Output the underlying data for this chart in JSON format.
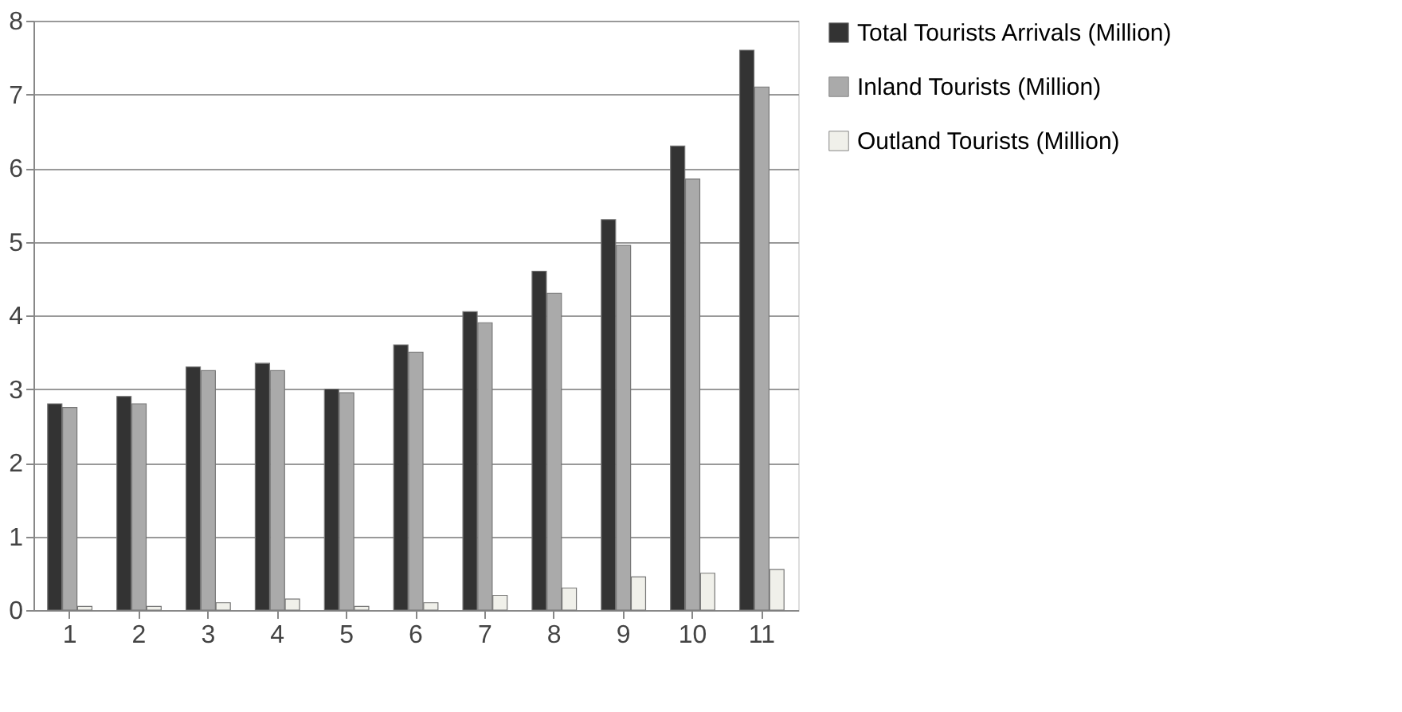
{
  "chart_data": {
    "type": "bar",
    "categories": [
      "1",
      "2",
      "3",
      "4",
      "5",
      "6",
      "7",
      "8",
      "9",
      "10",
      "11"
    ],
    "series": [
      {
        "name": "Total Tourists Arrivals (Million)",
        "color": "#333333",
        "values": [
          2.8,
          2.9,
          3.3,
          3.35,
          3.0,
          3.6,
          4.05,
          4.6,
          5.3,
          6.3,
          7.6
        ]
      },
      {
        "name": "Inland Tourists (Million)",
        "color": "#aaaaaa",
        "values": [
          2.75,
          2.8,
          3.25,
          3.25,
          2.95,
          3.5,
          3.9,
          4.3,
          4.95,
          5.85,
          7.1
        ]
      },
      {
        "name": "Outland Tourists (Million)",
        "color": "#f0f0ea",
        "values": [
          0.05,
          0.05,
          0.1,
          0.15,
          0.05,
          0.1,
          0.2,
          0.3,
          0.45,
          0.5,
          0.55
        ]
      }
    ],
    "ylim": [
      0,
      8
    ],
    "yticks": [
      0,
      1,
      2,
      3,
      4,
      5,
      6,
      7,
      8
    ],
    "grid": "y",
    "legend": "right"
  }
}
